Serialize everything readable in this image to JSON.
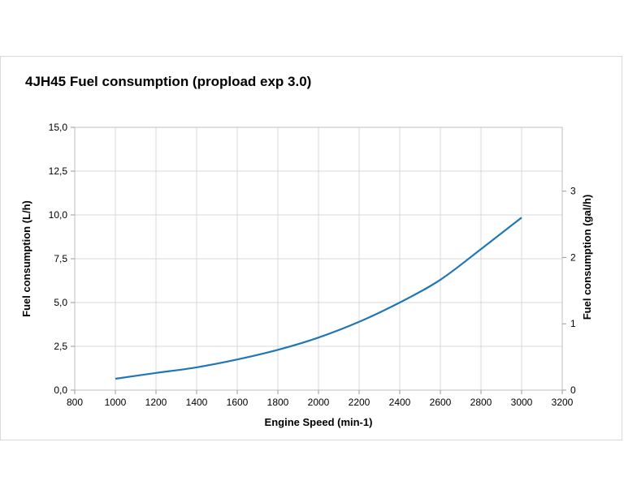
{
  "chart_data": {
    "type": "line",
    "title": "4JH45 Fuel consumption (propload exp 3.0)",
    "xlabel": "Engine Speed (min-1)",
    "ylabel": "Fuel consumption (L/h)",
    "y2label": "Fuel consumption (gal/h)",
    "xlim": [
      800,
      3200
    ],
    "ylim": [
      0,
      15
    ],
    "y2lim": [
      0,
      3.9625
    ],
    "x_ticks": [
      "800",
      "1000",
      "1200",
      "1400",
      "1600",
      "1800",
      "2000",
      "2200",
      "2400",
      "2600",
      "2800",
      "3000",
      "3200"
    ],
    "y_ticks": [
      "0,0",
      "2,5",
      "5,0",
      "7,5",
      "10,0",
      "12,5",
      "15,0"
    ],
    "y2_ticks": [
      "0",
      "1",
      "2",
      "3"
    ],
    "grid": true,
    "line_color": "#1f77b4",
    "series": [
      {
        "x": [
          1000,
          1200,
          1400,
          1600,
          1800,
          2000,
          2200,
          2400,
          2600,
          2800,
          3000
        ],
        "y": [
          0.65,
          0.98,
          1.3,
          1.75,
          2.3,
          3.0,
          3.9,
          5.0,
          6.3,
          8.05,
          9.85
        ]
      }
    ]
  }
}
